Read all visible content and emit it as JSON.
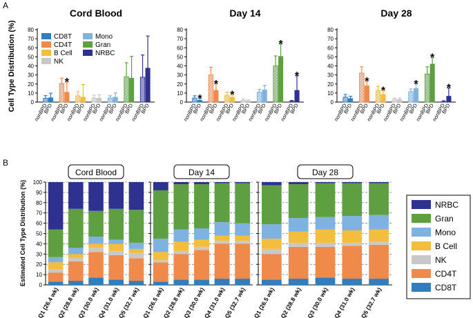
{
  "panel_labels": {
    "a": "A",
    "b": "B"
  },
  "colors": {
    "CD8T": "#2f7fc0",
    "CD4T": "#f08a4b",
    "B Cell": "#f2be3c",
    "NK": "#c8c8c8",
    "Mono": "#7fb2e0",
    "Gran": "#5e9f42",
    "NRBC": "#2e3190",
    "grid": "#555555"
  },
  "chart_data": [
    {
      "type": "bar",
      "title": "Cord Blood",
      "ylabel": "Cell Type Distribution (%)",
      "ylim": [
        0,
        80
      ],
      "yticks": [
        0,
        10,
        20,
        30,
        40,
        50,
        60,
        70,
        80
      ],
      "legend": [
        "CD8T",
        "CD4T",
        "B Cell",
        "NK",
        "Mono",
        "Gran",
        "NRBC"
      ],
      "groups": [
        "CD8T",
        "CD4T",
        "B Cell",
        "NK",
        "Mono",
        "Gran",
        "NRBC"
      ],
      "categories": [
        "nonBPD",
        "BPD"
      ],
      "nonBPD": {
        "values": [
          4.2,
          20.5,
          7.0,
          4.5,
          4.5,
          28.0,
          27.5
        ],
        "err": [
          3.0,
          6.0,
          4.5,
          3.0,
          2.5,
          15.5,
          24.5
        ]
      },
      "BPD": {
        "values": [
          4.8,
          11.0,
          5.5,
          4.5,
          5.5,
          26.5,
          37.5
        ],
        "err": [
          5.0,
          11.0,
          14.0,
          3.5,
          4.5,
          24.0,
          35.5
        ]
      },
      "significant": [
        "CD4T"
      ]
    },
    {
      "type": "bar",
      "title": "Day 14",
      "ylim": [
        0,
        80
      ],
      "yticks": [
        0,
        10,
        20,
        30,
        40,
        50,
        60,
        70,
        80
      ],
      "groups": [
        "CD8T",
        "CD4T",
        "B Cell",
        "NK",
        "Mono",
        "Gran",
        "NRBC"
      ],
      "categories": [
        "nonBPD",
        "BPD"
      ],
      "nonBPD": {
        "values": [
          4.5,
          30.0,
          7.5,
          2.0,
          11.0,
          40.0,
          0.8
        ],
        "err": [
          2.5,
          8.5,
          3.5,
          1.5,
          3.0,
          11.0,
          1.0
        ]
      },
      "BPD": {
        "values": [
          2.0,
          13.0,
          5.5,
          1.5,
          13.5,
          50.5,
          13.0
        ],
        "err": [
          2.0,
          7.0,
          2.5,
          1.0,
          5.0,
          13.5,
          16.0
        ]
      },
      "significant": [
        "CD8T",
        "CD4T",
        "B Cell",
        "Gran",
        "NRBC"
      ]
    },
    {
      "type": "bar",
      "title": "Day 28",
      "ylim": [
        0,
        80
      ],
      "yticks": [
        0,
        10,
        20,
        30,
        40,
        50,
        60,
        70,
        80
      ],
      "groups": [
        "CD8T",
        "CD4T",
        "B Cell",
        "NK",
        "Mono",
        "Gran",
        "NRBC"
      ],
      "categories": [
        "nonBPD",
        "BPD"
      ],
      "nonBPD": {
        "values": [
          5.5,
          32.0,
          13.0,
          3.0,
          11.5,
          31.0,
          0.5
        ],
        "err": [
          3.0,
          7.0,
          4.5,
          1.5,
          3.0,
          8.0,
          1.0
        ]
      },
      "BPD": {
        "values": [
          4.0,
          18.0,
          8.5,
          3.0,
          15.0,
          42.0,
          6.5
        ],
        "err": [
          2.5,
          5.0,
          4.0,
          1.5,
          5.0,
          7.0,
          9.0
        ]
      },
      "significant": [
        "CD4T",
        "B Cell",
        "Mono",
        "Gran",
        "NRBC"
      ]
    },
    {
      "type": "bar",
      "stacked": true,
      "title": "Cord Blood",
      "ylabel": "Estimated Cell Type Distribution (%)",
      "ylim": [
        0,
        100
      ],
      "yticks": [
        0,
        10,
        20,
        30,
        40,
        50,
        60,
        70,
        80,
        90,
        100
      ],
      "categories": [
        "Q1 (26.4 wk)",
        "Q2 (28.8 wk)",
        "Q3 (30.0 wk)",
        "Q4 (31.0 wk)",
        "Q5 (32.7 wk)"
      ],
      "series": [
        {
          "name": "CD8T",
          "values": [
            3,
            4,
            7,
            5,
            4
          ]
        },
        {
          "name": "CD4T",
          "values": [
            9,
            19,
            25,
            24,
            22
          ]
        },
        {
          "name": "NK",
          "values": [
            3,
            3,
            4,
            4,
            5
          ]
        },
        {
          "name": "B Cell",
          "values": [
            7,
            4,
            4,
            7,
            4
          ]
        },
        {
          "name": "Mono",
          "values": [
            5,
            6,
            7,
            4,
            6
          ]
        },
        {
          "name": "Gran",
          "values": [
            27,
            38,
            25,
            30,
            32
          ]
        },
        {
          "name": "NRBC",
          "values": [
            46,
            26,
            28,
            26,
            27
          ]
        }
      ]
    },
    {
      "type": "bar",
      "stacked": true,
      "title": "Day 14",
      "ylim": [
        0,
        100
      ],
      "yticks": [
        0,
        10,
        20,
        30,
        40,
        50,
        60,
        70,
        80,
        90,
        100
      ],
      "categories": [
        "Q1 (26.5 wk)",
        "Q2 (28.8 wk)",
        "Q3 (30.0 wk)",
        "Q4 (31.0 wk)",
        "Q5 (32.7 wk)"
      ],
      "series": [
        {
          "name": "CD8T",
          "values": [
            3,
            5,
            5,
            6,
            6
          ]
        },
        {
          "name": "CD4T",
          "values": [
            19,
            25,
            29,
            34,
            34
          ]
        },
        {
          "name": "NK",
          "values": [
            2,
            3,
            3,
            3,
            3
          ]
        },
        {
          "name": "B Cell",
          "values": [
            8,
            9,
            7,
            5,
            5
          ]
        },
        {
          "name": "Mono",
          "values": [
            13,
            12,
            11,
            13,
            12
          ]
        },
        {
          "name": "Gran",
          "values": [
            47,
            44,
            43,
            38,
            39
          ]
        },
        {
          "name": "NRBC",
          "values": [
            8,
            2,
            2,
            1,
            1
          ]
        }
      ]
    },
    {
      "type": "bar",
      "stacked": true,
      "title": "Day 28",
      "ylim": [
        0,
        100
      ],
      "yticks": [
        0,
        10,
        20,
        30,
        40,
        50,
        60,
        70,
        80,
        90,
        100
      ],
      "categories": [
        "Q1 (26.5 wk)",
        "Q2 (28.8 wk)",
        "Q3 (30.0 wk)",
        "Q4 (31.0 wk)",
        "Q5 (32.7 wk)"
      ],
      "series": [
        {
          "name": "CD8T",
          "values": [
            5,
            6,
            7,
            6,
            6
          ]
        },
        {
          "name": "CD4T",
          "values": [
            25,
            31,
            30,
            32,
            33
          ]
        },
        {
          "name": "NK",
          "values": [
            5,
            4,
            4,
            3,
            3
          ]
        },
        {
          "name": "B Cell",
          "values": [
            10,
            11,
            13,
            12,
            12
          ]
        },
        {
          "name": "Mono",
          "values": [
            14,
            13,
            12,
            14,
            14
          ]
        },
        {
          "name": "Gran",
          "values": [
            38,
            33,
            33,
            32,
            31
          ]
        },
        {
          "name": "NRBC",
          "values": [
            3,
            2,
            1,
            1,
            1
          ]
        }
      ]
    }
  ],
  "legend_b": [
    "NRBC",
    "Gran",
    "Mono",
    "B Cell",
    "NK",
    "CD4T",
    "CD8T"
  ]
}
